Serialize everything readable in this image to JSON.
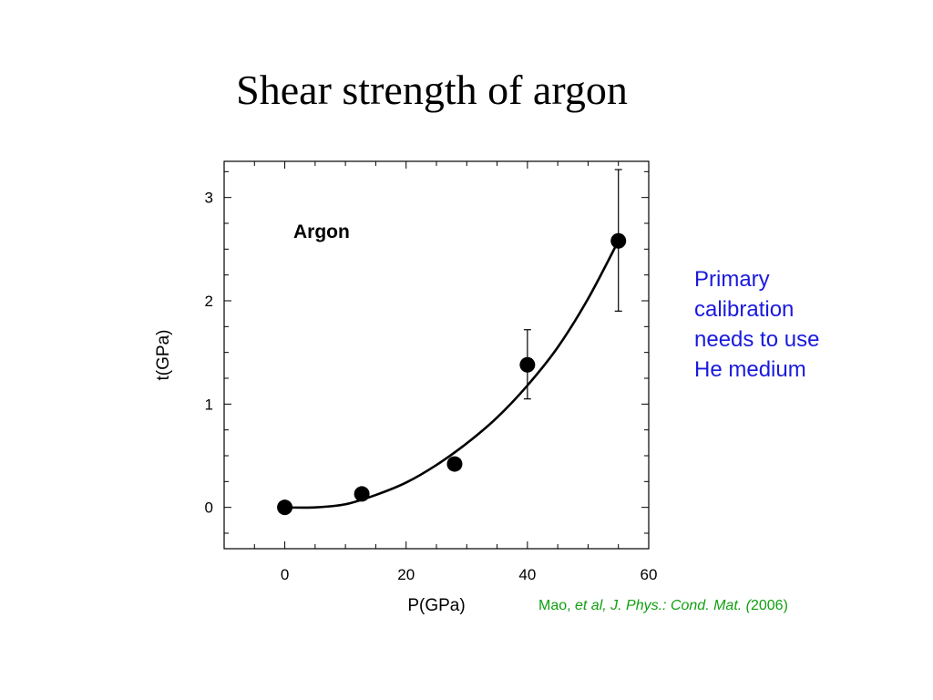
{
  "slide": {
    "title": "Shear strength of argon",
    "note_lines": [
      "Primary",
      "calibration",
      "needs to use",
      "He medium"
    ],
    "citation": {
      "author": "Mao, ",
      "journal": "et al, J. Phys.: Cond. Mat. ",
      "year_open": "(",
      "year": "2006)"
    }
  },
  "colors": {
    "note": "#1a1adc",
    "citation": "#10a010",
    "marks": "#000000"
  },
  "chart_data": {
    "type": "scatter",
    "annotation": "Argon",
    "xlabel": "P(GPa)",
    "ylabel": "t(GPa)",
    "xlim": [
      -10,
      60
    ],
    "ylim": [
      -0.4,
      3.35
    ],
    "xticks": [
      0,
      20,
      40,
      60
    ],
    "yticks": [
      0,
      1,
      2,
      3
    ],
    "grid": false,
    "series": [
      {
        "points": [
          {
            "x": 0,
            "y": 0
          },
          {
            "x": 12.7,
            "y": 0.13
          },
          {
            "x": 28,
            "y": 0.42
          },
          {
            "x": 40,
            "y": 1.38,
            "err": [
              1.05,
              1.72
            ]
          },
          {
            "x": 55,
            "y": 2.58,
            "err": [
              1.9,
              3.27
            ]
          }
        ]
      }
    ],
    "fit_curve": {
      "x": [
        0,
        5,
        10,
        15,
        20,
        25,
        30,
        35,
        40,
        45,
        50,
        55
      ],
      "y": [
        0,
        0.0,
        0.03,
        0.12,
        0.24,
        0.41,
        0.62,
        0.87,
        1.18,
        1.55,
        2.02,
        2.58
      ]
    }
  }
}
